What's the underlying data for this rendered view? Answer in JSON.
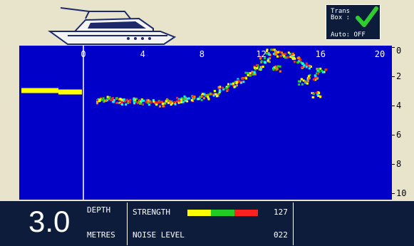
{
  "trans_box": {
    "title": "Trans\nBox :",
    "status_icon": "check-icon",
    "auto": "Auto: OFF",
    "check_color": "#2ecc2e"
  },
  "plot": {
    "x_ticks": [
      "0",
      "4",
      "8",
      "12",
      "16",
      "20"
    ],
    "y_ticks": [
      "0",
      "2",
      "4",
      "6",
      "8",
      "10"
    ],
    "background_color": "#0000c8",
    "palette": [
      "#ffff00",
      "#22cc22",
      "#ff2020",
      "#00ffff",
      "#ff8000"
    ],
    "history_line_depth": 3.0,
    "bottom_points": [
      [
        1.0,
        3.6
      ],
      [
        1.6,
        3.5
      ],
      [
        2.2,
        3.6
      ],
      [
        2.8,
        3.7
      ],
      [
        3.4,
        3.6
      ],
      [
        4.0,
        3.7
      ],
      [
        4.6,
        3.7
      ],
      [
        5.2,
        3.8
      ],
      [
        5.8,
        3.7
      ],
      [
        6.4,
        3.6
      ],
      [
        7.0,
        3.5
      ],
      [
        7.6,
        3.4
      ],
      [
        8.2,
        3.3
      ],
      [
        8.8,
        3.1
      ],
      [
        9.4,
        2.8
      ],
      [
        10.0,
        2.5
      ],
      [
        10.6,
        2.2
      ],
      [
        11.2,
        1.8
      ],
      [
        11.8,
        1.3
      ],
      [
        12.2,
        0.8
      ],
      [
        12.6,
        0.3
      ],
      [
        13.2,
        0.4
      ],
      [
        13.8,
        0.5
      ],
      [
        14.4,
        0.8
      ],
      [
        15.0,
        1.2
      ],
      [
        15.4,
        2.0
      ],
      [
        16.0,
        1.6
      ],
      [
        15.6,
        3.2
      ],
      [
        14.8,
        2.3
      ],
      [
        13.0,
        1.4
      ]
    ]
  },
  "readout": {
    "depth_value": "3.0",
    "depth_label": "DEPTH",
    "units_label": "METRES",
    "strength_label": "STRENGTH",
    "strength_value": "127",
    "noise_label": "NOISE LEVEL",
    "noise_value": "022",
    "strength_colors": [
      "#ffff00",
      "#22cc22",
      "#ff2020"
    ]
  }
}
